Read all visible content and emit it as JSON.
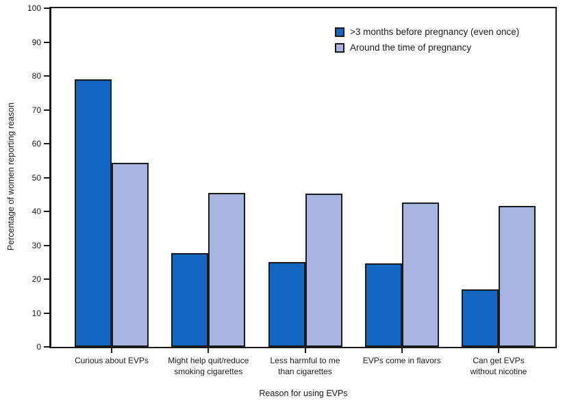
{
  "chart_data": {
    "type": "bar",
    "title": "",
    "categories": [
      "Curious about EVPs",
      "Might help quit/reduce\nsmoking cigarettes",
      "Less harmful to me\nthan cigarettes",
      "EVPs come in flavors",
      "Can get EVPs\nwithout nicotine"
    ],
    "series": [
      {
        "name": ">3 months before pregnancy (even once)",
        "color": "#1466c3",
        "values": [
          79.0,
          27.7,
          25.0,
          24.7,
          16.9
        ]
      },
      {
        "name": "Around the time of pregnancy",
        "color": "#aab6e2",
        "values": [
          54.3,
          45.4,
          45.3,
          42.6,
          41.6
        ]
      }
    ],
    "xlabel": "Reason for using EVPs",
    "ylabel": "Percentage of women reporting reason",
    "ylim": [
      0,
      100
    ],
    "ytick_step": 10,
    "grid": false,
    "legend_position": "top-right",
    "axis_color": "#1a1a1a",
    "background_color": "#ffffff"
  }
}
